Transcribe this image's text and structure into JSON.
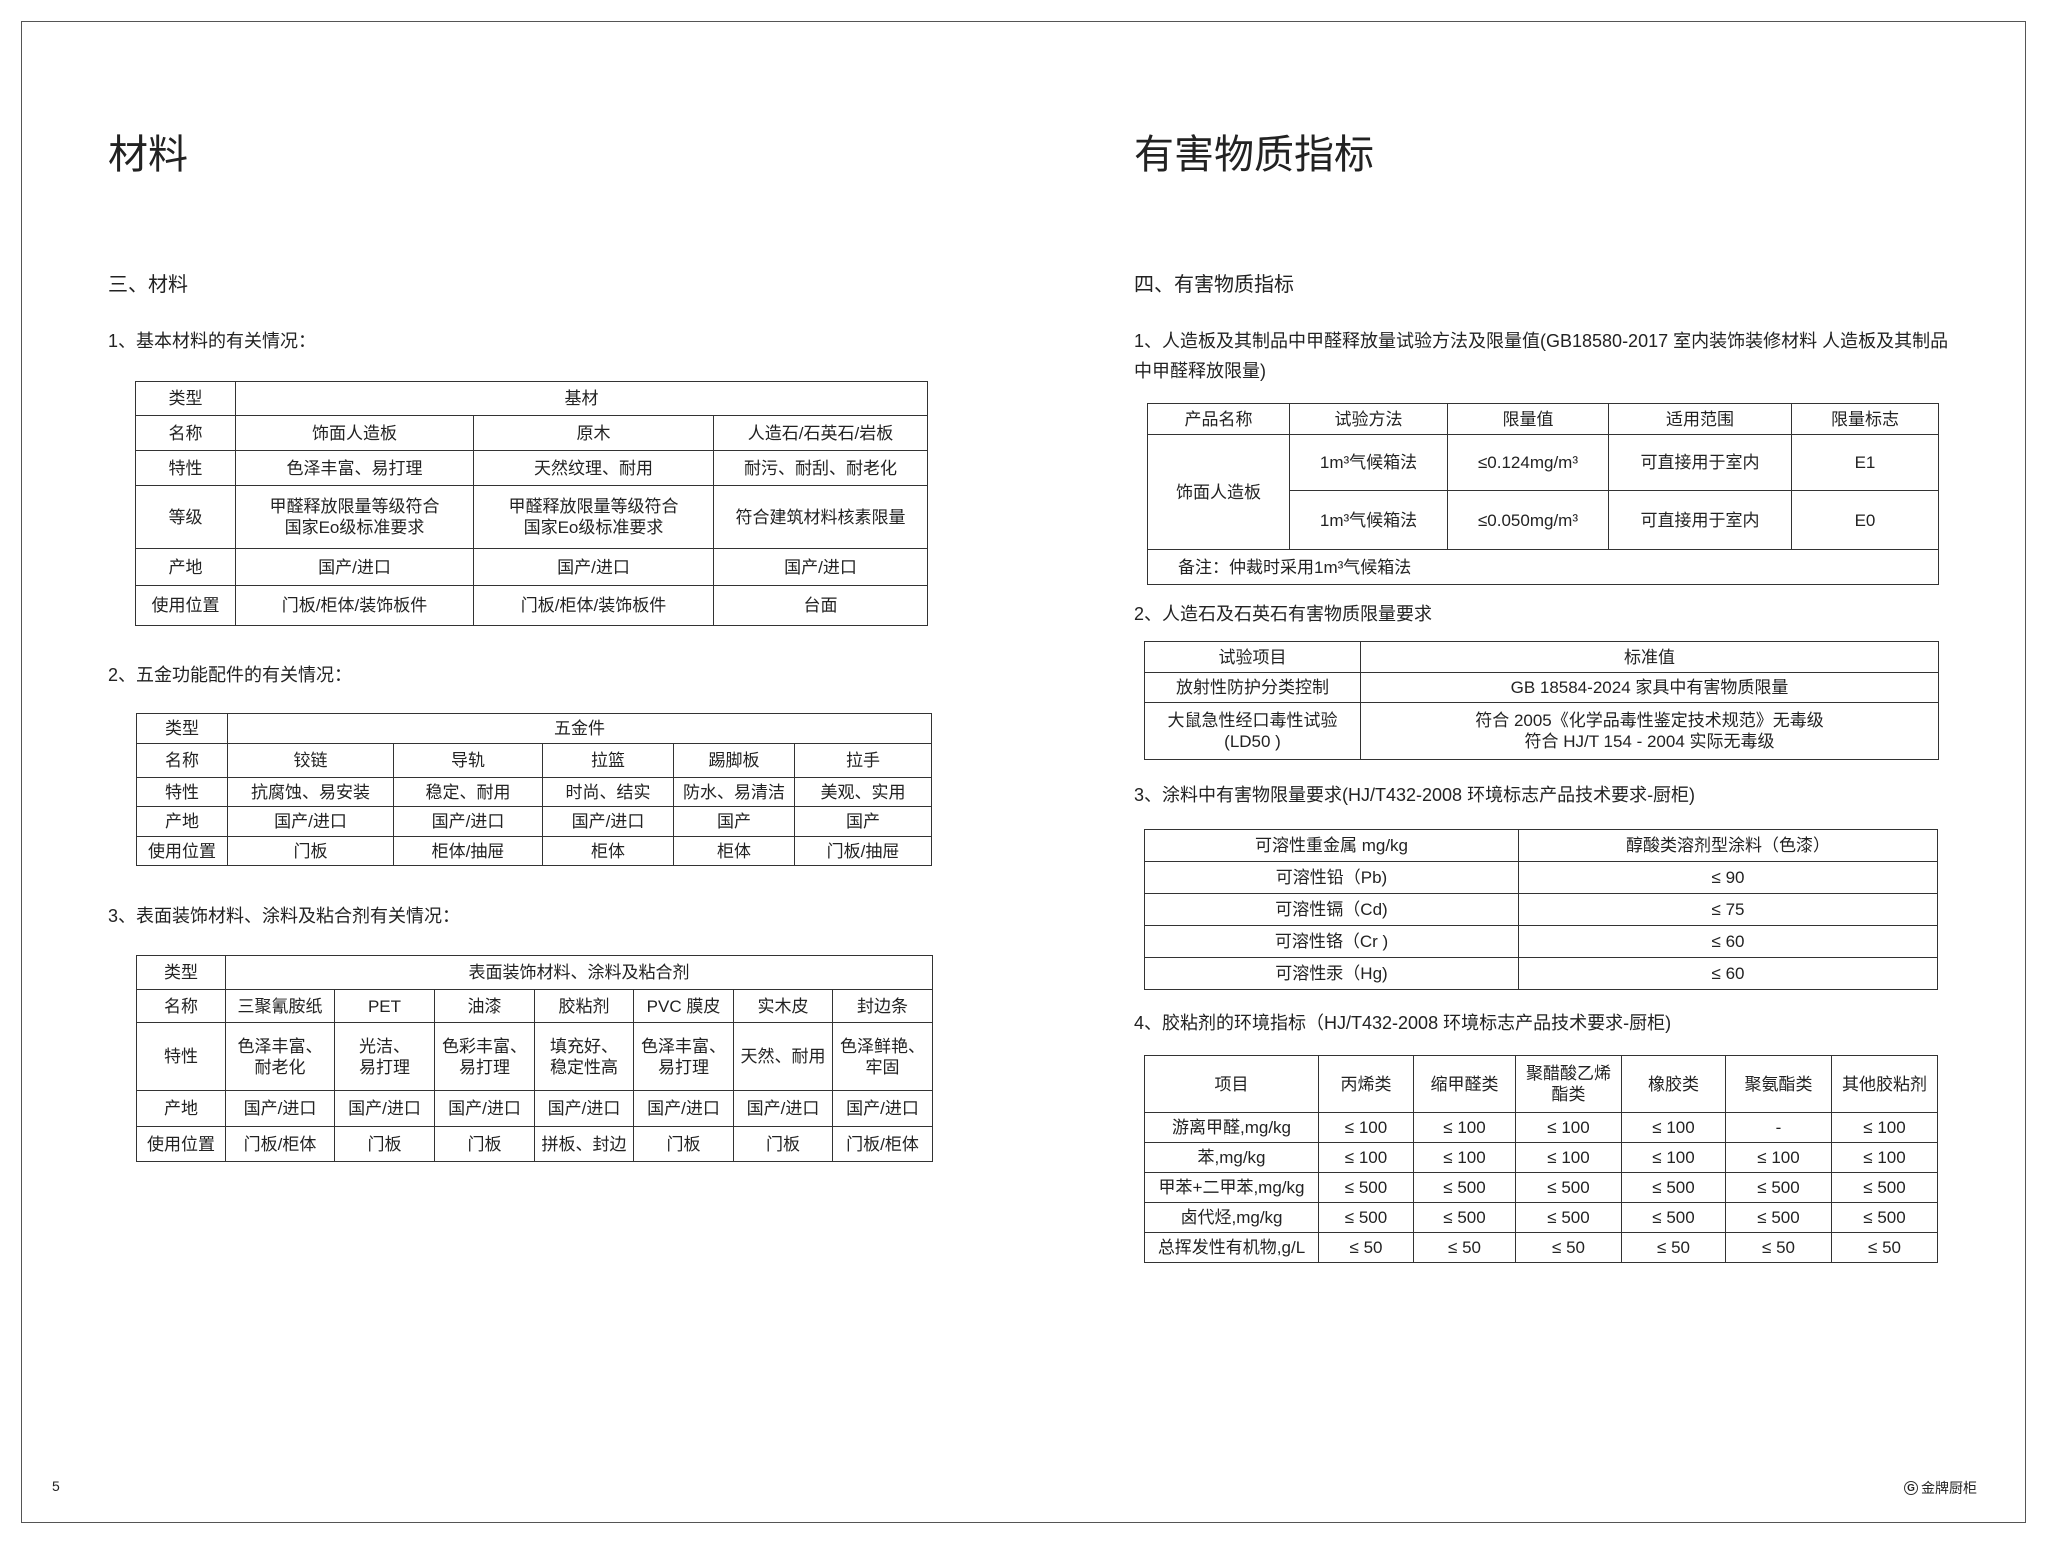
{
  "left": {
    "title": "材料",
    "section": "三、材料",
    "sub1": "1、基本材料的有关情况：",
    "table1": [
      [
        "类型",
        "基材"
      ],
      [
        "名称",
        "饰面人造板",
        "原木",
        "人造石/石英石/岩板"
      ],
      [
        "特性",
        "色泽丰富、易打理",
        "天然纹理、耐用",
        "耐污、耐刮、耐老化"
      ],
      [
        "等级",
        "甲醛释放限量等级符合\n国家Eo级标准要求",
        "甲醛释放限量等级符合\n国家Eo级标准要求",
        "符合建筑材料核素限量"
      ],
      [
        "产地",
        "国产/进口",
        "国产/进口",
        "国产/进口"
      ],
      [
        "使用位置",
        "门板/柜体/装饰板件",
        "门板/柜体/装饰板件",
        "台面"
      ]
    ],
    "sub2": "2、五金功能配件的有关情况：",
    "table2": [
      [
        "类型",
        "五金件"
      ],
      [
        "名称",
        "铰链",
        "导轨",
        "拉篮",
        "踢脚板",
        "拉手"
      ],
      [
        "特性",
        "抗腐蚀、易安装",
        "稳定、耐用",
        "时尚、结实",
        "防水、易清洁",
        "美观、实用"
      ],
      [
        "产地",
        "国产/进口",
        "国产/进口",
        "国产/进口",
        "国产",
        "国产"
      ],
      [
        "使用位置",
        "门板",
        "柜体/抽屉",
        "柜体",
        "柜体",
        "门板/抽屉"
      ]
    ],
    "sub3": "3、表面装饰材料、涂料及粘合剂有关情况：",
    "table3": [
      [
        "类型",
        "表面装饰材料、涂料及粘合剂"
      ],
      [
        "名称",
        "三聚氰胺纸",
        "PET",
        "油漆",
        "胶粘剂",
        "PVC  膜皮",
        "实木皮",
        "封边条"
      ],
      [
        "特性",
        "色泽丰富、\n耐老化",
        "光洁、\n易打理",
        "色彩丰富、\n易打理",
        "填充好、\n稳定性高",
        "色泽丰富、\n易打理",
        "天然、耐用",
        "色泽鲜艳、\n牢固"
      ],
      [
        "产地",
        "国产/进口",
        "国产/进口",
        "国产/进口",
        "国产/进口",
        "国产/进口",
        "国产/进口",
        "国产/进口"
      ],
      [
        "使用位置",
        "门板/柜体",
        "门板",
        "门板",
        "拼板、封边",
        "门板",
        "门板",
        "门板/柜体"
      ]
    ],
    "page_number": "5"
  },
  "right": {
    "title": "有害物质指标",
    "section": "四、有害物质指标",
    "sub1": "1、人造板及其制品中甲醛释放量试验方法及限量值(GB18580-2017 室内装饰装修材料 人造板及其制品中甲醛释放限量)",
    "table1": [
      [
        "产品名称",
        "试验方法",
        "限量值",
        "适用范围",
        "限量标志"
      ],
      [
        "饰面人造板",
        "1m³气候箱法",
        "≤0.124mg/m³",
        "可直接用于室内",
        "E1"
      ],
      [
        "1m³气候箱法",
        "≤0.050mg/m³",
        "可直接用于室内",
        "E0"
      ],
      [
        "备注：仲裁时采用1m³气候箱法"
      ]
    ],
    "sub2": "2、人造石及石英石有害物质限量要求",
    "table2": [
      [
        "试验项目",
        "标准值"
      ],
      [
        "放射性防护分类控制",
        "GB 18584-2024 家具中有害物质限量"
      ],
      [
        "大鼠急性经口毒性试验\n(LD50 )",
        "符合 2005《化学品毒性鉴定技术规范》无毒级\n符合 HJ/T 154 - 2004  实际无毒级"
      ]
    ],
    "sub3": "3、涂料中有害物限量要求(HJ/T432-2008 环境标志产品技术要求-厨柜)",
    "table3": [
      [
        "可溶性重金属 mg/kg",
        "醇酸类溶剂型涂料（色漆）"
      ],
      [
        "可溶性铅（Pb)",
        "≤ 90"
      ],
      [
        "可溶性镉（Cd)",
        "≤ 75"
      ],
      [
        "可溶性铬（Cr )",
        "≤ 60"
      ],
      [
        "可溶性汞（Hg)",
        "≤ 60"
      ]
    ],
    "sub4": "4、胶粘剂的环境指标（HJ/T432-2008 环境标志产品技术要求-厨柜)",
    "table4": [
      [
        "项目",
        "丙烯类",
        "缩甲醛类",
        "聚醋酸乙烯\n酯类",
        "橡胶类",
        "聚氨酯类",
        "其他胶粘剂"
      ],
      [
        "游离甲醛,mg/kg",
        "≤ 100",
        "≤ 100",
        "≤ 100",
        "≤ 100",
        "-",
        "≤ 100"
      ],
      [
        "苯,mg/kg",
        "≤ 100",
        "≤ 100",
        "≤ 100",
        "≤ 100",
        "≤ 100",
        "≤ 100"
      ],
      [
        "甲苯+二甲苯,mg/kg",
        "≤ 500",
        "≤ 500",
        "≤ 500",
        "≤ 500",
        "≤ 500",
        "≤ 500"
      ],
      [
        "卤代烃,mg/kg",
        "≤ 500",
        "≤ 500",
        "≤ 500",
        "≤ 500",
        "≤ 500",
        "≤ 500"
      ],
      [
        "总挥发性有机物,g/L",
        "≤ 50",
        "≤ 50",
        "≤ 50",
        "≤ 50",
        "≤ 50",
        "≤ 50"
      ]
    ],
    "logo_text": "金牌厨柜"
  }
}
